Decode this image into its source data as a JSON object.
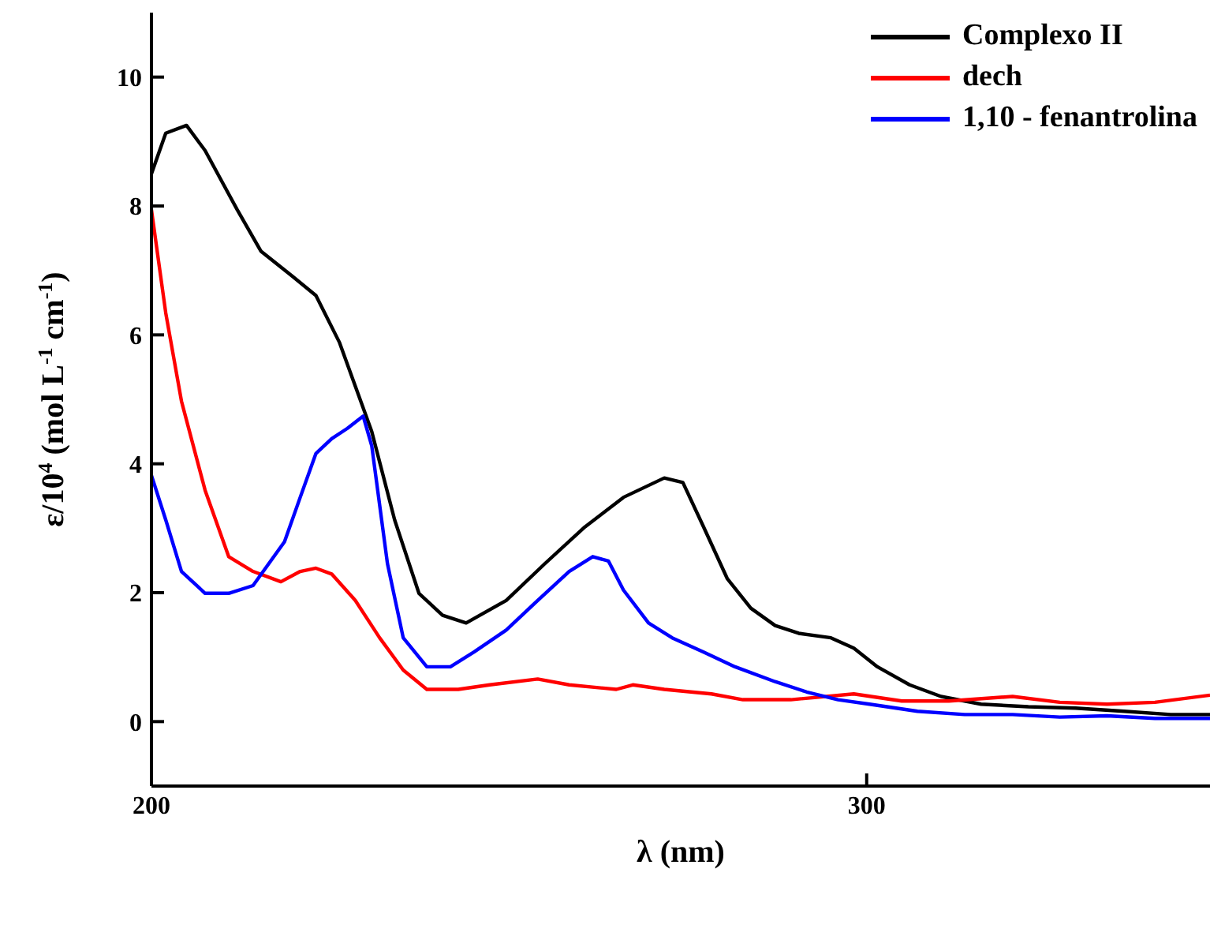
{
  "chart_data": {
    "type": "line",
    "xlabel": "λ (nm)",
    "ylabel": "ε/10$^{4}$ (mol L$^{-1}$ cm$^{-1}$)",
    "xlim": [
      200,
      348
    ],
    "ylim": [
      -1,
      11
    ],
    "xticks": [
      200,
      300
    ],
    "yticks": [
      0,
      2,
      4,
      6,
      8,
      10
    ],
    "grid": false,
    "legend": "top right",
    "marker": "none",
    "line_style": "solid",
    "series": [
      {
        "name": "Complexo II",
        "color": "#000000",
        "x": [
          200,
          202,
          204.9,
          207.5,
          212,
          215.3,
          219.7,
          223,
          226.3,
          230.8,
          234,
          237.4,
          240.7,
          244,
          249.6,
          255,
          260.6,
          266,
          271.7,
          274.3,
          277.2,
          280.5,
          283.8,
          287.2,
          290.5,
          295,
          298.2,
          301.5,
          306,
          310.4,
          316,
          322.6,
          329.2,
          336,
          342.5,
          348
        ],
        "values": [
          8.5,
          9.13,
          9.25,
          8.86,
          7.94,
          7.3,
          6.91,
          6.61,
          5.88,
          4.5,
          3.13,
          1.99,
          1.65,
          1.53,
          1.88,
          2.45,
          3.02,
          3.48,
          3.78,
          3.71,
          3.02,
          2.22,
          1.76,
          1.49,
          1.37,
          1.3,
          1.14,
          0.85,
          0.57,
          0.39,
          0.27,
          0.23,
          0.21,
          0.16,
          0.11,
          0.11
        ]
      },
      {
        "name": "dech",
        "color": "#ff0000",
        "x": [
          200,
          202,
          204.2,
          207.5,
          210.8,
          214.2,
          218.1,
          220.8,
          223,
          225.2,
          228.5,
          231.9,
          235.2,
          238.5,
          242.9,
          247.3,
          254,
          258.4,
          265,
          267.3,
          271.7,
          278.3,
          282.7,
          289.4,
          298.2,
          304.9,
          311.5,
          320.4,
          327,
          333.6,
          340.3,
          348
        ],
        "values": [
          7.94,
          6.34,
          4.97,
          3.59,
          2.56,
          2.33,
          2.17,
          2.33,
          2.38,
          2.29,
          1.88,
          1.3,
          0.8,
          0.5,
          0.5,
          0.57,
          0.66,
          0.57,
          0.5,
          0.57,
          0.5,
          0.43,
          0.34,
          0.34,
          0.43,
          0.32,
          0.32,
          0.39,
          0.3,
          0.27,
          0.3,
          0.41
        ]
      },
      {
        "name": "1,10 - fenantrolina",
        "color": "#0000ff",
        "x": [
          200,
          202,
          204.2,
          207.5,
          210.8,
          214.2,
          218.6,
          220.8,
          223,
          225.2,
          227.4,
          229.6,
          230.8,
          233,
          235.2,
          238.5,
          241.8,
          245.1,
          249.6,
          254,
          258.4,
          261.7,
          263.9,
          266,
          269.5,
          272.8,
          277.2,
          281.6,
          287.2,
          291.6,
          296,
          300.4,
          307.1,
          313.7,
          320.4,
          327,
          333.6,
          340.3,
          348
        ],
        "values": [
          3.82,
          3.13,
          2.33,
          1.99,
          1.99,
          2.11,
          2.79,
          3.48,
          4.16,
          4.39,
          4.55,
          4.74,
          4.28,
          2.45,
          1.3,
          0.85,
          0.85,
          1.08,
          1.42,
          1.88,
          2.33,
          2.56,
          2.49,
          2.04,
          1.53,
          1.3,
          1.08,
          0.85,
          0.62,
          0.46,
          0.34,
          0.27,
          0.16,
          0.11,
          0.11,
          0.07,
          0.09,
          0.05,
          0.05
        ]
      }
    ]
  }
}
